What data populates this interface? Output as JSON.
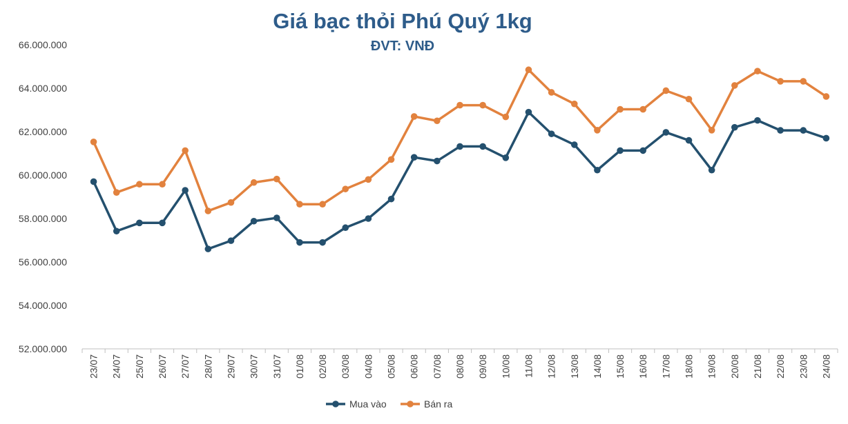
{
  "chart_data": {
    "type": "line",
    "title": "Giá bạc thỏi Phú Quý 1kg",
    "subtitle": "ĐVT: VNĐ",
    "xlabel": "",
    "ylabel": "",
    "ylim": [
      52000000,
      66000000
    ],
    "yticks": [
      52000000,
      54000000,
      56000000,
      58000000,
      60000000,
      62000000,
      64000000,
      66000000
    ],
    "ytick_labels": [
      "52.000.000",
      "54.000.000",
      "56.000.000",
      "58.000.000",
      "60.000.000",
      "62.000.000",
      "64.000.000",
      "66.000.000"
    ],
    "grid": false,
    "legend_position": "bottom",
    "categories": [
      "23/07",
      "24/07",
      "25/07",
      "26/07",
      "27/07",
      "28/07",
      "29/07",
      "30/07",
      "31/07",
      "01/08",
      "02/08",
      "03/08",
      "04/08",
      "05/08",
      "06/08",
      "07/08",
      "08/08",
      "09/08",
      "10/08",
      "11/08",
      "12/08",
      "13/08",
      "14/08",
      "15/08",
      "16/08",
      "17/08",
      "18/08",
      "19/08",
      "20/08",
      "21/08",
      "22/08",
      "23/08",
      "24/08"
    ],
    "series": [
      {
        "name": "Mua vào",
        "color": "#24506E",
        "values": [
          59700000,
          57420000,
          57800000,
          57800000,
          59300000,
          56600000,
          56980000,
          57880000,
          58030000,
          56900000,
          56900000,
          57580000,
          58000000,
          58900000,
          60820000,
          60650000,
          61320000,
          61320000,
          60800000,
          62900000,
          61900000,
          61400000,
          60230000,
          61130000,
          61130000,
          61970000,
          61600000,
          60230000,
          62200000,
          62520000,
          62060000,
          62060000,
          61700000
        ]
      },
      {
        "name": "Bán ra",
        "color": "#E2823E",
        "values": [
          61530000,
          59200000,
          59580000,
          59580000,
          61130000,
          58350000,
          58740000,
          59660000,
          59820000,
          58660000,
          58660000,
          59360000,
          59800000,
          60720000,
          62700000,
          62500000,
          63220000,
          63220000,
          62680000,
          64850000,
          63810000,
          63280000,
          62070000,
          63030000,
          63030000,
          63890000,
          63500000,
          62070000,
          64130000,
          64790000,
          64320000,
          64320000,
          63620000
        ]
      }
    ]
  }
}
